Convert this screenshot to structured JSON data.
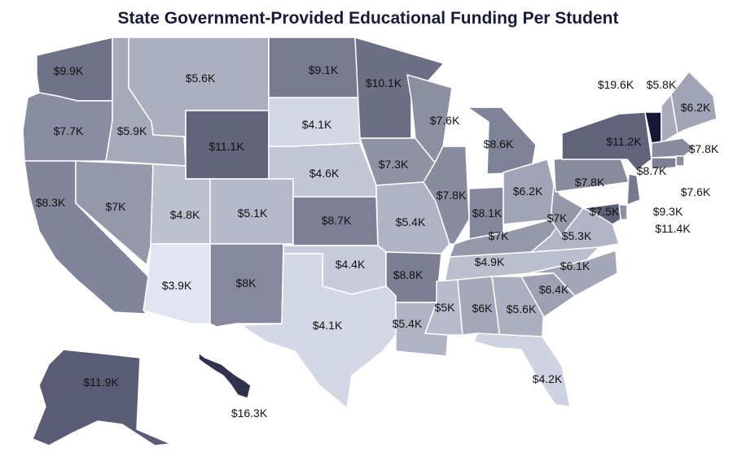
{
  "title": "State Government-Provided Educational Funding Per Student",
  "colors": {
    "scale": [
      "#e2e5f1",
      "#151735"
    ],
    "scale_domain": [
      3.9,
      19.6
    ],
    "border": "#ffffff",
    "text": "#111111"
  },
  "map_data": {
    "type": "choropleth",
    "unit": "$K per student",
    "states": [
      {
        "abbr": "WA",
        "label": "$9.9K",
        "value": 9.9
      },
      {
        "abbr": "OR",
        "label": "$7.7K",
        "value": 7.7
      },
      {
        "abbr": "CA",
        "label": "$8.3K",
        "value": 8.3
      },
      {
        "abbr": "ID",
        "label": "$5.9K",
        "value": 5.9
      },
      {
        "abbr": "NV",
        "label": "$7K",
        "value": 7.0
      },
      {
        "abbr": "MT",
        "label": "$5.6K",
        "value": 5.6
      },
      {
        "abbr": "WY",
        "label": "$11.1K",
        "value": 11.1
      },
      {
        "abbr": "UT",
        "label": "$4.8K",
        "value": 4.8
      },
      {
        "abbr": "AZ",
        "label": "$3.9K",
        "value": 3.9
      },
      {
        "abbr": "CO",
        "label": "$5.1K",
        "value": 5.1
      },
      {
        "abbr": "NM",
        "label": "$8K",
        "value": 8.0
      },
      {
        "abbr": "ND",
        "label": "$9.1K",
        "value": 9.1
      },
      {
        "abbr": "SD",
        "label": "$4.1K",
        "value": 4.1
      },
      {
        "abbr": "NE",
        "label": "$4.6K",
        "value": 4.6
      },
      {
        "abbr": "KS",
        "label": "$8.7K",
        "value": 8.7
      },
      {
        "abbr": "OK",
        "label": "$4.4K",
        "value": 4.4
      },
      {
        "abbr": "TX",
        "label": "$4.1K",
        "value": 4.1
      },
      {
        "abbr": "MN",
        "label": "$10.1K",
        "value": 10.1
      },
      {
        "abbr": "IA",
        "label": "$7.3K",
        "value": 7.3
      },
      {
        "abbr": "MO",
        "label": "$5.4K",
        "value": 5.4
      },
      {
        "abbr": "AR",
        "label": "$8.8K",
        "value": 8.8
      },
      {
        "abbr": "LA",
        "label": "$5.4K",
        "value": 5.4
      },
      {
        "abbr": "WI",
        "label": "$7.6K",
        "value": 7.6
      },
      {
        "abbr": "IL",
        "label": "$7.8K",
        "value": 7.8
      },
      {
        "abbr": "MI",
        "label": "$8.6K",
        "value": 8.6
      },
      {
        "abbr": "IN",
        "label": "$8.1K",
        "value": 8.1
      },
      {
        "abbr": "OH",
        "label": "$6.2K",
        "value": 6.2
      },
      {
        "abbr": "KY",
        "label": "$7K",
        "value": 7.0
      },
      {
        "abbr": "TN",
        "label": "$4.9K",
        "value": 4.9
      },
      {
        "abbr": "MS",
        "label": "$5K",
        "value": 5.0
      },
      {
        "abbr": "AL",
        "label": "$6K",
        "value": 6.0
      },
      {
        "abbr": "GA",
        "label": "$5.6K",
        "value": 5.6
      },
      {
        "abbr": "FL",
        "label": "$4.2K",
        "value": 4.2
      },
      {
        "abbr": "SC",
        "label": "$6.4K",
        "value": 6.4
      },
      {
        "abbr": "NC",
        "label": "$6.1K",
        "value": 6.1
      },
      {
        "abbr": "VA",
        "label": "$5.3K",
        "value": 5.3
      },
      {
        "abbr": "WV",
        "label": "$7K",
        "value": 7.0
      },
      {
        "abbr": "PA",
        "label": "$7.8K",
        "value": 7.8
      },
      {
        "abbr": "NY",
        "label": "$11.2K",
        "value": 11.2
      },
      {
        "abbr": "VT",
        "label": "$19.6K",
        "value": 19.6
      },
      {
        "abbr": "NH",
        "label": "$5.8K",
        "value": 5.8
      },
      {
        "abbr": "ME",
        "label": "$6.2K",
        "value": 6.2
      },
      {
        "abbr": "MA",
        "label": "$7.8K",
        "value": 7.8
      },
      {
        "abbr": "RI",
        "label": "$7.6K",
        "value": 7.6
      },
      {
        "abbr": "CT",
        "label": "$8.7K",
        "value": 8.7
      },
      {
        "abbr": "NJ",
        "label": "$9.3K",
        "value": 9.3
      },
      {
        "abbr": "DE",
        "label": "$7.5K",
        "value": 7.5
      },
      {
        "abbr": "MD",
        "label": "$11.4K",
        "value": 11.4
      },
      {
        "abbr": "AK",
        "label": "$11.9K",
        "value": 11.9
      },
      {
        "abbr": "HI",
        "label": "$16.3K",
        "value": 16.3
      }
    ]
  }
}
